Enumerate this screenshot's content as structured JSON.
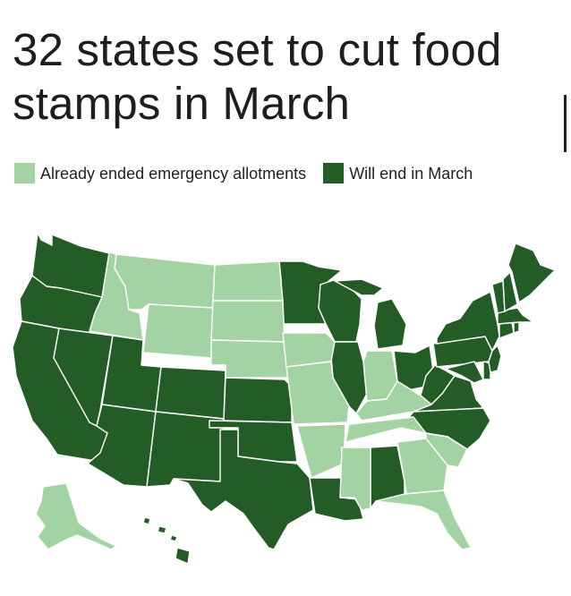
{
  "title": "32 states set to cut food stamps in March",
  "legend": [
    {
      "label": "Already ended emergency allotments",
      "color": "#a3d3a3"
    },
    {
      "label": "Will end in March",
      "color": "#245c25"
    }
  ],
  "colors": {
    "ended": "#a3d3a3",
    "will_end": "#245c25",
    "border": "#ffffff"
  }
}
